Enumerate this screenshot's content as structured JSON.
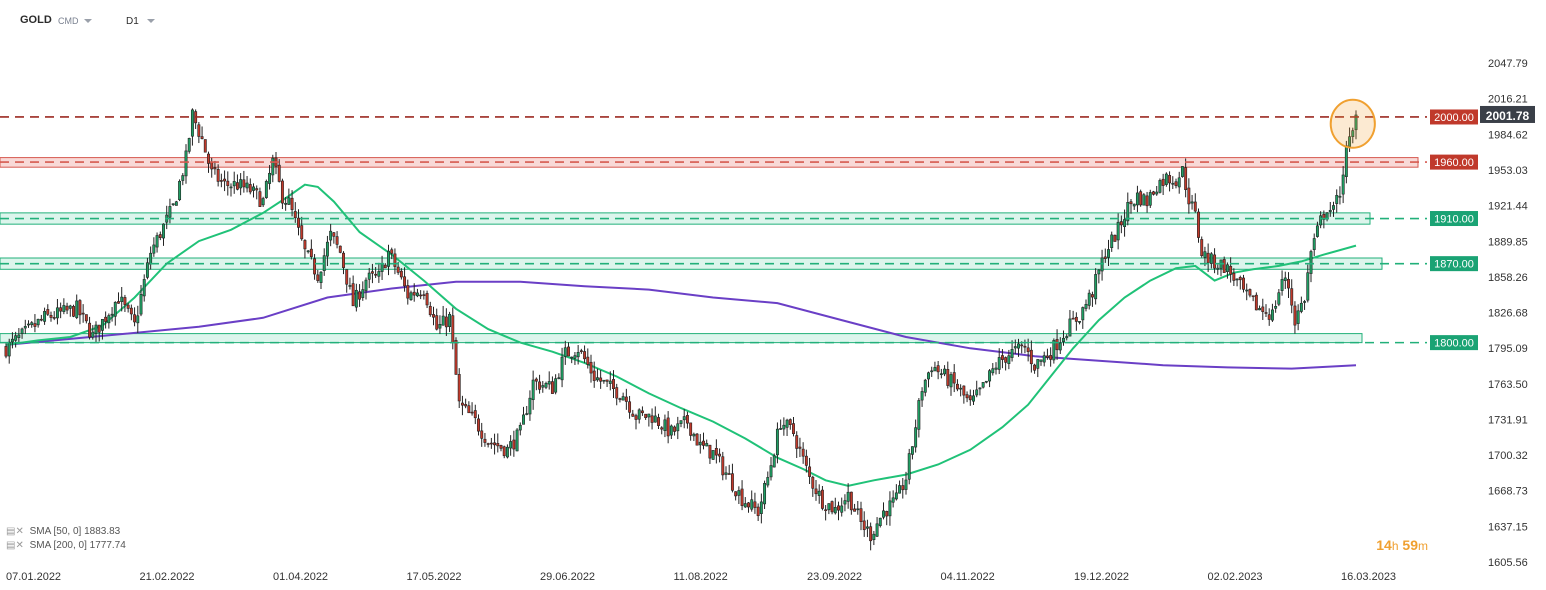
{
  "header": {
    "symbol": "GOLD",
    "type": "CMD",
    "timeframe": "D1"
  },
  "legend": [
    {
      "label": "SMA [50, 0]",
      "value": "1883.83"
    },
    {
      "label": "SMA [200, 0]",
      "value": "1777.74"
    }
  ],
  "timer": {
    "hours": "14",
    "h_unit": "h",
    "minutes": "59",
    "m_unit": "m"
  },
  "colors": {
    "up": "#1f9e63",
    "down": "#c0392b",
    "wick": "#222222",
    "sma50": "#20c278",
    "sma200": "#6a3fc6",
    "resistance": "#c0392b",
    "support": "#1aa374",
    "highlight": "#f0a030"
  },
  "chart_data": {
    "type": "candlestick",
    "symbol": "GOLD",
    "timeframe": "D1",
    "ylim": [
      1605.56,
      2070
    ],
    "y_ticks": [
      "2047.79",
      "2016.21",
      "1984.62",
      "1953.03",
      "1921.44",
      "1889.85",
      "1858.26",
      "1826.68",
      "1795.09",
      "1763.50",
      "1731.91",
      "1700.32",
      "1668.73",
      "1637.15",
      "1605.56"
    ],
    "x_ticks": [
      "07.01.2022",
      "21.02.2022",
      "01.04.2022",
      "17.05.2022",
      "29.06.2022",
      "11.08.2022",
      "23.09.2022",
      "04.11.2022",
      "19.12.2022",
      "02.02.2023",
      "16.03.2023"
    ],
    "last_price": "2001.78",
    "levels": [
      {
        "value": 2000.0,
        "label": "2000.00",
        "kind": "resistance",
        "zone": [
          1999.2,
          2000.8
        ]
      },
      {
        "value": 1960.0,
        "label": "1960.00",
        "kind": "resistance",
        "zone": [
          1955.5,
          1964.0
        ]
      },
      {
        "value": 1910.0,
        "label": "1910.00",
        "kind": "support",
        "zone": [
          1905.0,
          1915.0
        ]
      },
      {
        "value": 1870.0,
        "label": "1870.00",
        "kind": "support",
        "zone": [
          1865.0,
          1875.0
        ]
      },
      {
        "value": 1800.0,
        "label": "1800.00",
        "kind": "support",
        "zone": [
          1800.0,
          1808.0
        ]
      }
    ],
    "price_path": [
      [
        0,
        1795
      ],
      [
        12,
        1822
      ],
      [
        22,
        1830
      ],
      [
        27,
        1806
      ],
      [
        35,
        1840
      ],
      [
        40,
        1815
      ],
      [
        45,
        1880
      ],
      [
        52,
        1920
      ],
      [
        56,
        1963
      ],
      [
        58,
        2002
      ],
      [
        61,
        1980
      ],
      [
        64,
        1950
      ],
      [
        68,
        1940
      ],
      [
        72,
        1940
      ],
      [
        76,
        1935
      ],
      [
        80,
        1925
      ],
      [
        83,
        1960
      ],
      [
        86,
        1930
      ],
      [
        88,
        1924
      ],
      [
        93,
        1880
      ],
      [
        97,
        1860
      ],
      [
        101,
        1895
      ],
      [
        104,
        1880
      ],
      [
        108,
        1834
      ],
      [
        112,
        1856
      ],
      [
        116,
        1858
      ],
      [
        119,
        1880
      ],
      [
        122,
        1862
      ],
      [
        125,
        1842
      ],
      [
        130,
        1848
      ],
      [
        134,
        1812
      ],
      [
        138,
        1822
      ],
      [
        141,
        1745
      ],
      [
        146,
        1730
      ],
      [
        150,
        1713
      ],
      [
        156,
        1705
      ],
      [
        160,
        1720
      ],
      [
        164,
        1765
      ],
      [
        170,
        1760
      ],
      [
        174,
        1790
      ],
      [
        178,
        1795
      ],
      [
        183,
        1770
      ],
      [
        188,
        1760
      ],
      [
        192,
        1754
      ],
      [
        196,
        1735
      ],
      [
        201,
        1735
      ],
      [
        207,
        1720
      ],
      [
        212,
        1730
      ],
      [
        216,
        1708
      ],
      [
        220,
        1702
      ],
      [
        225,
        1680
      ],
      [
        229,
        1662
      ],
      [
        234,
        1650
      ],
      [
        237,
        1680
      ],
      [
        241,
        1730
      ],
      [
        245,
        1720
      ],
      [
        250,
        1680
      ],
      [
        254,
        1660
      ],
      [
        258,
        1652
      ],
      [
        262,
        1665
      ],
      [
        266,
        1640
      ],
      [
        269,
        1630
      ],
      [
        273,
        1650
      ],
      [
        277,
        1660
      ],
      [
        280,
        1680
      ],
      [
        282,
        1710
      ],
      [
        285,
        1760
      ],
      [
        288,
        1780
      ],
      [
        292,
        1770
      ],
      [
        296,
        1760
      ],
      [
        300,
        1745
      ],
      [
        304,
        1760
      ],
      [
        308,
        1780
      ],
      [
        312,
        1790
      ],
      [
        317,
        1796
      ],
      [
        320,
        1780
      ],
      [
        325,
        1792
      ],
      [
        330,
        1812
      ],
      [
        334,
        1824
      ],
      [
        338,
        1845
      ],
      [
        342,
        1880
      ],
      [
        346,
        1900
      ],
      [
        349,
        1920
      ],
      [
        352,
        1930
      ],
      [
        355,
        1925
      ],
      [
        358,
        1940
      ],
      [
        361,
        1946
      ],
      [
        364,
        1945
      ],
      [
        366,
        1952
      ],
      [
        368,
        1928
      ],
      [
        370,
        1912
      ],
      [
        372,
        1880
      ],
      [
        375,
        1872
      ],
      [
        379,
        1868
      ],
      [
        382,
        1858
      ],
      [
        386,
        1840
      ],
      [
        390,
        1830
      ],
      [
        394,
        1825
      ],
      [
        397,
        1856
      ],
      [
        399,
        1850
      ],
      [
        401,
        1820
      ],
      [
        404,
        1840
      ],
      [
        406,
        1880
      ],
      [
        409,
        1908
      ],
      [
        411,
        1920
      ],
      [
        413,
        1916
      ],
      [
        415,
        1935
      ],
      [
        417,
        1970
      ],
      [
        419,
        1985
      ],
      [
        420,
        2001.78
      ]
    ],
    "sma50": [
      [
        0,
        1798
      ],
      [
        10,
        1802
      ],
      [
        20,
        1805
      ],
      [
        30,
        1815
      ],
      [
        40,
        1840
      ],
      [
        50,
        1870
      ],
      [
        60,
        1890
      ],
      [
        70,
        1900
      ],
      [
        80,
        1915
      ],
      [
        88,
        1930
      ],
      [
        93,
        1940
      ],
      [
        97,
        1938
      ],
      [
        102,
        1925
      ],
      [
        110,
        1898
      ],
      [
        120,
        1878
      ],
      [
        130,
        1855
      ],
      [
        140,
        1830
      ],
      [
        150,
        1812
      ],
      [
        160,
        1800
      ],
      [
        170,
        1792
      ],
      [
        180,
        1782
      ],
      [
        190,
        1770
      ],
      [
        200,
        1755
      ],
      [
        210,
        1742
      ],
      [
        220,
        1730
      ],
      [
        230,
        1715
      ],
      [
        240,
        1698
      ],
      [
        248,
        1688
      ],
      [
        255,
        1678
      ],
      [
        262,
        1673
      ],
      [
        270,
        1678
      ],
      [
        280,
        1683
      ],
      [
        290,
        1692
      ],
      [
        300,
        1705
      ],
      [
        310,
        1725
      ],
      [
        318,
        1745
      ],
      [
        325,
        1770
      ],
      [
        332,
        1795
      ],
      [
        340,
        1820
      ],
      [
        348,
        1840
      ],
      [
        356,
        1855
      ],
      [
        364,
        1866
      ],
      [
        370,
        1868
      ],
      [
        376,
        1855
      ],
      [
        382,
        1862
      ],
      [
        388,
        1865
      ],
      [
        396,
        1868
      ],
      [
        403,
        1872
      ],
      [
        410,
        1878
      ],
      [
        420,
        1886
      ]
    ],
    "sma200": [
      [
        0,
        1798
      ],
      [
        30,
        1806
      ],
      [
        60,
        1814
      ],
      [
        80,
        1822
      ],
      [
        100,
        1840
      ],
      [
        120,
        1848
      ],
      [
        140,
        1854
      ],
      [
        160,
        1854
      ],
      [
        180,
        1850
      ],
      [
        200,
        1847
      ],
      [
        220,
        1840
      ],
      [
        240,
        1835
      ],
      [
        260,
        1820
      ],
      [
        280,
        1805
      ],
      [
        300,
        1795
      ],
      [
        320,
        1788
      ],
      [
        340,
        1784
      ],
      [
        360,
        1780
      ],
      [
        380,
        1778
      ],
      [
        400,
        1777
      ],
      [
        420,
        1780
      ]
    ],
    "highlight_ellipse": {
      "x_start": 414,
      "x_end": 424,
      "y_top": 2010,
      "y_bottom": 1978
    }
  }
}
